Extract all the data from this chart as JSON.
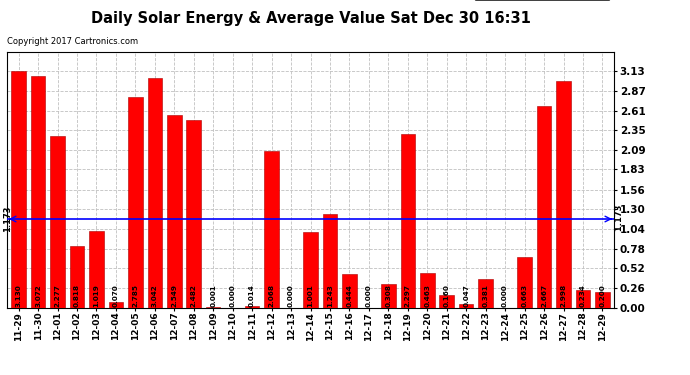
{
  "title": "Daily Solar Energy & Average Value Sat Dec 30 16:31",
  "copyright": "Copyright 2017 Cartronics.com",
  "categories": [
    "11-29",
    "11-30",
    "12-01",
    "12-02",
    "12-03",
    "12-04",
    "12-05",
    "12-06",
    "12-07",
    "12-08",
    "12-09",
    "12-10",
    "12-11",
    "12-12",
    "12-13",
    "12-14",
    "12-15",
    "12-16",
    "12-17",
    "12-18",
    "12-19",
    "12-20",
    "12-21",
    "12-22",
    "12-23",
    "12-24",
    "12-25",
    "12-26",
    "12-27",
    "12-28",
    "12-29"
  ],
  "values": [
    3.13,
    3.072,
    2.277,
    0.818,
    1.019,
    0.07,
    2.785,
    3.042,
    2.549,
    2.482,
    0.001,
    0.0,
    0.014,
    2.068,
    0.0,
    1.001,
    1.243,
    0.444,
    0.0,
    0.308,
    2.297,
    0.463,
    0.16,
    0.047,
    0.381,
    0.0,
    0.663,
    2.667,
    2.998,
    0.234,
    0.2
  ],
  "average": 1.173,
  "bar_color": "#FF0000",
  "avg_line_color": "#0000FF",
  "background_color": "#FFFFFF",
  "grid_color": "#C0C0C0",
  "ylim": [
    0.0,
    3.38
  ],
  "yticks": [
    0.0,
    0.26,
    0.52,
    0.78,
    1.04,
    1.3,
    1.56,
    1.83,
    2.09,
    2.35,
    2.61,
    2.87,
    3.13
  ],
  "legend_avg_color": "#000099",
  "legend_daily_color": "#FF0000",
  "bar_edge_color": "#AA0000",
  "value_fontsize": 5.2,
  "xtick_fontsize": 6.5,
  "ytick_fontsize": 7.5,
  "title_fontsize": 10.5,
  "copyright_fontsize": 6.0,
  "avg_label_fontsize": 6.0
}
